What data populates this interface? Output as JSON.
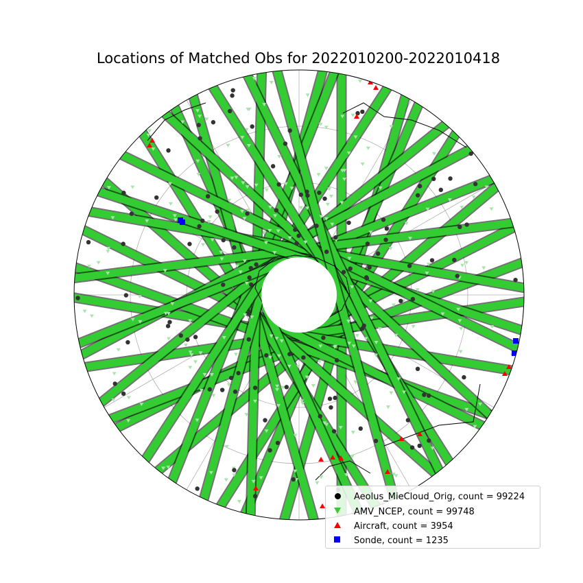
{
  "title": "Locations of Matched Obs for 2022010200-2022010418",
  "colors": {
    "aeolus": "#000000",
    "amv": "#33cc33",
    "amv_light": "#a8e6a8",
    "aircraft": "#ff0000",
    "sonde": "#0000ff",
    "grid": "#b0b0b0",
    "coast": "#000000"
  },
  "projection": "south-polar-stereographic",
  "chart_data": {
    "type": "scatter",
    "title": "Locations of Matched Obs for 2022010200-2022010418",
    "legend_placement": "lower-right",
    "grid": true,
    "series": [
      {
        "name": "Aeolus_MieCloud_Orig, count = 99224",
        "marker": "circle",
        "color": "#000000",
        "count": 99224
      },
      {
        "name": "AMV_NCEP, count = 99748",
        "marker": "triangle-down",
        "color": "#33cc33",
        "count": 99748
      },
      {
        "name": "Aircraft, count = 3954",
        "marker": "triangle-up",
        "color": "#ff0000",
        "count": 3954
      },
      {
        "name": "Sonde, count = 1235",
        "marker": "square",
        "color": "#0000ff",
        "count": 1235
      }
    ]
  },
  "legend": {
    "items": [
      {
        "label": "Aeolus_MieCloud_Orig, count = 99224",
        "icon": "black-circle-marker"
      },
      {
        "label": "AMV_NCEP, count = 99748",
        "icon": "green-down-triangle-marker"
      },
      {
        "label": "Aircraft, count = 3954",
        "icon": "red-up-triangle-marker"
      },
      {
        "label": "Sonde, count = 1235",
        "icon": "blue-square-marker"
      }
    ]
  }
}
